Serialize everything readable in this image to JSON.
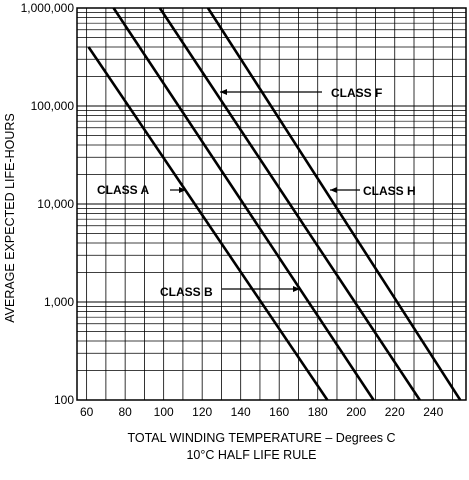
{
  "chart_data": {
    "type": "line",
    "title": "",
    "xlabel": "TOTAL WINDING TEMPERATURE – Degrees C",
    "xlabel2": "10°C HALF LIFE RULE",
    "ylabel": "AVERAGE EXPECTED LIFE-HOURS",
    "xlim": [
      55,
      257
    ],
    "ylim": [
      100,
      1000000
    ],
    "y_scale": "log",
    "grid": true,
    "x_ticks": [
      60,
      80,
      100,
      120,
      140,
      160,
      180,
      200,
      220,
      240
    ],
    "y_ticks": [
      100,
      1000,
      10000,
      100000,
      1000000
    ],
    "y_tick_labels": [
      "100",
      "1,000",
      "10,000",
      "100,000",
      "1,000,000"
    ],
    "series": [
      {
        "name": "CLASS A",
        "points": [
          [
            61,
            400000
          ],
          [
            185,
            100
          ]
        ]
      },
      {
        "name": "CLASS B",
        "points": [
          [
            74,
            1000000
          ],
          [
            209,
            100
          ]
        ]
      },
      {
        "name": "CLASS F",
        "points": [
          [
            98,
            1000000
          ],
          [
            233,
            100
          ]
        ]
      },
      {
        "name": "CLASS H",
        "points": [
          [
            123,
            1000000
          ],
          [
            254,
            100
          ]
        ]
      }
    ],
    "annotations": [
      {
        "text": "CLASS A",
        "series": "CLASS A"
      },
      {
        "text": "CLASS B",
        "series": "CLASS B"
      },
      {
        "text": "CLASS F",
        "series": "CLASS F"
      },
      {
        "text": "CLASS H",
        "series": "CLASS H"
      }
    ]
  }
}
